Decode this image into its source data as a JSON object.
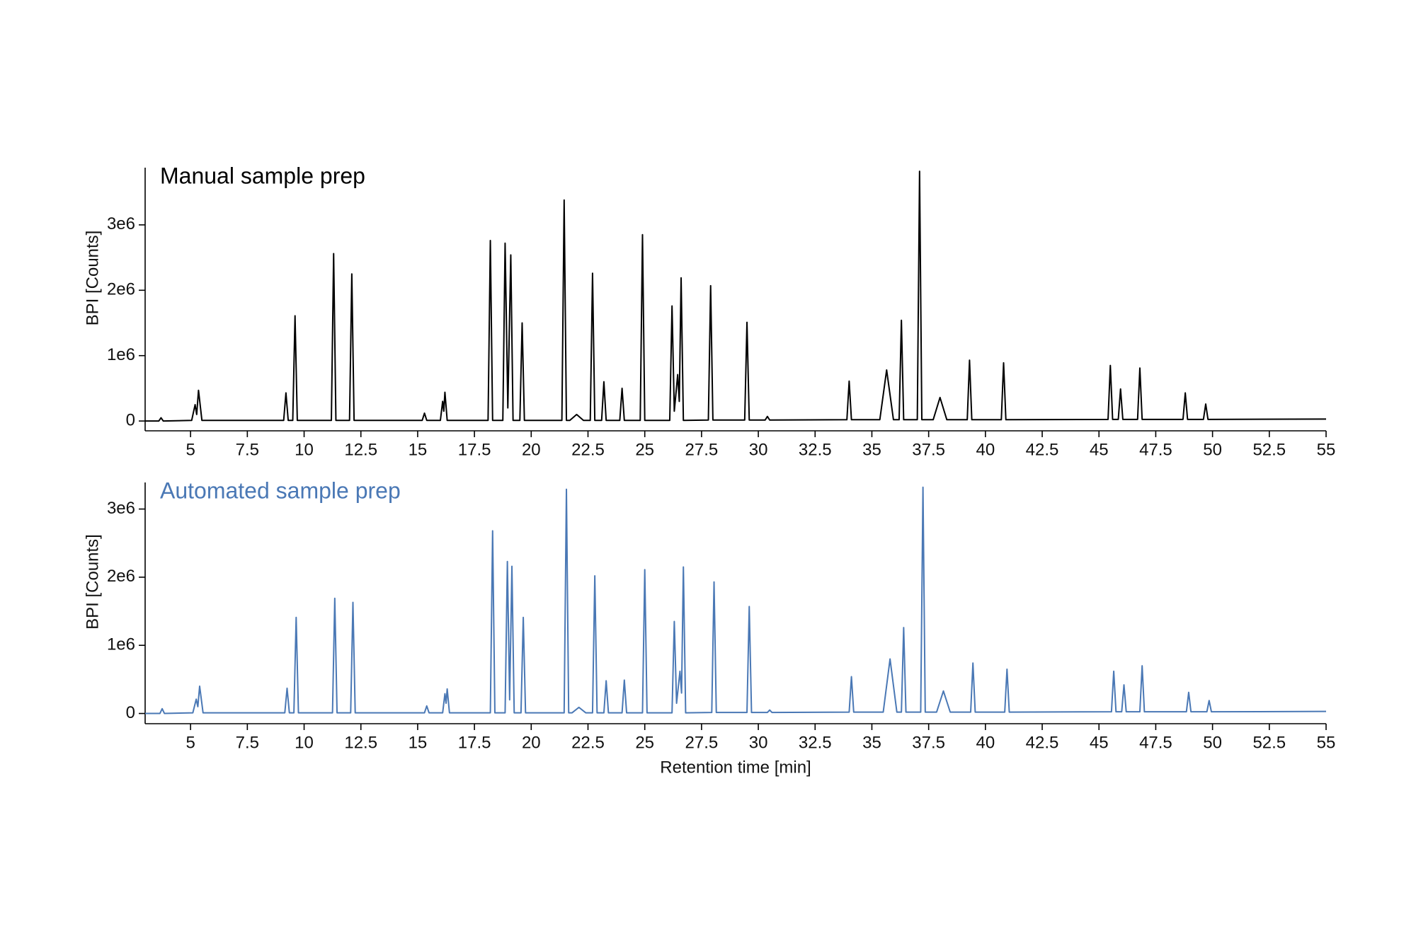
{
  "chart_data": [
    {
      "type": "line",
      "ylabel": "BPI [Counts]",
      "xlim": [
        3,
        55
      ],
      "xticks": [
        5,
        7.5,
        10,
        12.5,
        15,
        17.5,
        20,
        22.5,
        25,
        27.5,
        30,
        32.5,
        35,
        37.5,
        40,
        42.5,
        45,
        47.5,
        50,
        52.5,
        55
      ],
      "ylim": [
        -150000,
        3875000
      ],
      "yticks": [
        0,
        {
          "value": 1000000,
          "label": "1e6"
        },
        {
          "value": 2000000,
          "label": "2e6"
        },
        {
          "value": 3000000,
          "label": "3e6"
        }
      ],
      "x": [
        3,
        3.6,
        3.7,
        3.8,
        5.05,
        5.2,
        5.27,
        5.35,
        5.5,
        9.1,
        9.2,
        9.3,
        9.5,
        9.6,
        9.7,
        11.2,
        11.3,
        11.4,
        12.0,
        12.1,
        12.2,
        15.2,
        15.3,
        15.4,
        16.0,
        16.1,
        16.15,
        16.2,
        16.3,
        18.1,
        18.2,
        18.3,
        18.75,
        18.85,
        18.97,
        19.1,
        19.2,
        19.5,
        19.6,
        19.7,
        21.35,
        21.45,
        21.55,
        21.7,
        22.0,
        22.3,
        22.6,
        22.7,
        22.8,
        23.1,
        23.2,
        23.3,
        23.9,
        24.0,
        24.1,
        24.8,
        24.9,
        25.0,
        26.1,
        26.2,
        26.3,
        26.45,
        26.52,
        26.6,
        26.7,
        27.8,
        27.9,
        28.0,
        29.4,
        29.5,
        29.6,
        30.3,
        30.4,
        30.5,
        33.9,
        34.0,
        34.1,
        35.35,
        35.65,
        35.95,
        36.2,
        36.3,
        36.4,
        37.0,
        37.1,
        37.2,
        37.7,
        38.0,
        38.3,
        39.2,
        39.3,
        39.4,
        40.7,
        40.8,
        40.9,
        45.4,
        45.5,
        45.6,
        45.85,
        45.95,
        46.05,
        46.7,
        46.8,
        46.9,
        48.7,
        48.8,
        48.9,
        49.6,
        49.7,
        49.8,
        55
      ],
      "series": [
        {
          "name": "Manual sample prep",
          "color": "#000000",
          "values": [
            0,
            0,
            50000,
            0,
            10000,
            250000,
            100000,
            470000,
            10000,
            10000,
            430000,
            10000,
            10000,
            1610000,
            10000,
            10000,
            2560000,
            10000,
            10000,
            2250000,
            10000,
            10000,
            120000,
            10000,
            10000,
            300000,
            150000,
            440000,
            10000,
            10000,
            2760000,
            10000,
            10000,
            2720000,
            200000,
            2540000,
            10000,
            10000,
            1500000,
            10000,
            10000,
            3380000,
            10000,
            10000,
            100000,
            10000,
            10000,
            2260000,
            10000,
            10000,
            600000,
            10000,
            10000,
            500000,
            10000,
            10000,
            2850000,
            10000,
            10000,
            1760000,
            150000,
            710000,
            300000,
            2190000,
            10000,
            15000,
            2070000,
            15000,
            15000,
            1510000,
            15000,
            15000,
            70000,
            15000,
            20000,
            610000,
            20000,
            20000,
            780000,
            20000,
            20000,
            1540000,
            20000,
            20000,
            3820000,
            20000,
            20000,
            360000,
            20000,
            20000,
            930000,
            20000,
            20000,
            890000,
            20000,
            25000,
            850000,
            25000,
            25000,
            490000,
            25000,
            25000,
            810000,
            25000,
            25000,
            430000,
            25000,
            25000,
            260000,
            25000,
            30000
          ]
        }
      ]
    },
    {
      "type": "line",
      "ylabel": "BPI [Counts]",
      "xlabel": "Retention time [min]",
      "xlim": [
        3,
        55
      ],
      "xticks": [
        5,
        7.5,
        10,
        12.5,
        15,
        17.5,
        20,
        22.5,
        25,
        27.5,
        30,
        32.5,
        35,
        37.5,
        40,
        42.5,
        45,
        47.5,
        50,
        52.5,
        55
      ],
      "ylim": [
        -150000,
        3390000
      ],
      "yticks": [
        0,
        {
          "value": 1000000,
          "label": "1e6"
        },
        {
          "value": 2000000,
          "label": "2e6"
        },
        {
          "value": 3000000,
          "label": "3e6"
        }
      ],
      "x": [
        3,
        3.65,
        3.75,
        3.85,
        5.1,
        5.25,
        5.32,
        5.4,
        5.55,
        9.15,
        9.25,
        9.35,
        9.55,
        9.65,
        9.75,
        11.25,
        11.35,
        11.45,
        12.05,
        12.15,
        12.25,
        15.3,
        15.4,
        15.5,
        16.1,
        16.2,
        16.25,
        16.3,
        16.4,
        18.2,
        18.3,
        18.4,
        18.85,
        18.95,
        19.05,
        19.15,
        19.25,
        19.55,
        19.65,
        19.75,
        21.45,
        21.55,
        21.65,
        21.8,
        22.1,
        22.4,
        22.7,
        22.8,
        22.9,
        23.2,
        23.3,
        23.4,
        24.0,
        24.1,
        24.2,
        24.9,
        25.0,
        25.1,
        26.2,
        26.3,
        26.4,
        26.55,
        26.62,
        26.7,
        26.8,
        27.95,
        28.05,
        28.15,
        29.5,
        29.6,
        29.7,
        30.4,
        30.5,
        30.6,
        34.0,
        34.1,
        34.2,
        35.5,
        35.8,
        36.1,
        36.3,
        36.4,
        36.5,
        37.15,
        37.25,
        37.35,
        37.85,
        38.15,
        38.45,
        39.35,
        39.45,
        39.55,
        40.85,
        40.95,
        41.05,
        45.55,
        45.65,
        45.75,
        46.0,
        46.1,
        46.2,
        46.8,
        46.9,
        47.0,
        48.85,
        48.95,
        49.05,
        49.75,
        49.85,
        49.95,
        55
      ],
      "series": [
        {
          "name": "Automated sample prep",
          "color": "#4a78b5",
          "values": [
            0,
            0,
            70000,
            0,
            10000,
            210000,
            100000,
            400000,
            10000,
            10000,
            370000,
            10000,
            10000,
            1410000,
            10000,
            10000,
            1690000,
            10000,
            10000,
            1630000,
            10000,
            10000,
            110000,
            10000,
            10000,
            290000,
            150000,
            360000,
            10000,
            10000,
            2680000,
            10000,
            10000,
            2230000,
            200000,
            2160000,
            10000,
            10000,
            1410000,
            10000,
            10000,
            3290000,
            10000,
            10000,
            90000,
            10000,
            10000,
            2020000,
            10000,
            10000,
            480000,
            10000,
            10000,
            490000,
            10000,
            10000,
            2110000,
            10000,
            10000,
            1350000,
            150000,
            620000,
            300000,
            2150000,
            10000,
            15000,
            1930000,
            15000,
            15000,
            1570000,
            15000,
            15000,
            50000,
            15000,
            20000,
            540000,
            20000,
            20000,
            800000,
            20000,
            20000,
            1260000,
            20000,
            20000,
            3320000,
            20000,
            20000,
            330000,
            20000,
            20000,
            740000,
            20000,
            20000,
            650000,
            20000,
            25000,
            620000,
            25000,
            25000,
            420000,
            25000,
            25000,
            700000,
            25000,
            25000,
            310000,
            25000,
            25000,
            190000,
            25000,
            30000
          ]
        }
      ]
    }
  ]
}
